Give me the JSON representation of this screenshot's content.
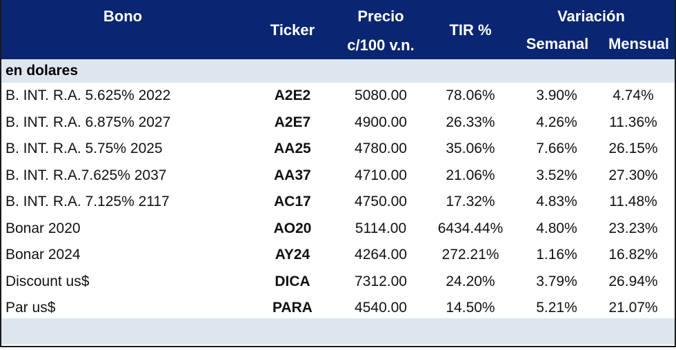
{
  "header": {
    "bono": "Bono",
    "ticker": "Ticker",
    "precio_line1": "Precio",
    "precio_line2": "c/100 v.n.",
    "tir": "TIR %",
    "variacion": "Variación",
    "semanal": "Semanal",
    "mensual": "Mensual"
  },
  "section": {
    "label": "en dolares"
  },
  "rows": [
    {
      "bono": "B. INT. R.A. 5.625% 2022",
      "ticker": "A2E2",
      "precio": "5080.00",
      "tir": "78.06%",
      "semanal": "3.90%",
      "mensual": "4.74%"
    },
    {
      "bono": "B. INT. R.A. 6.875% 2027",
      "ticker": "A2E7",
      "precio": "4900.00",
      "tir": "26.33%",
      "semanal": "4.26%",
      "mensual": "11.36%"
    },
    {
      "bono": "B. INT. R.A. 5.75% 2025",
      "ticker": "AA25",
      "precio": "4780.00",
      "tir": "35.06%",
      "semanal": "7.66%",
      "mensual": "26.15%"
    },
    {
      "bono": "B. INT. R.A.7.625% 2037",
      "ticker": "AA37",
      "precio": "4710.00",
      "tir": "21.06%",
      "semanal": "3.52%",
      "mensual": "27.30%"
    },
    {
      "bono": "B. INT. R.A. 7.125% 2117",
      "ticker": "AC17",
      "precio": "4750.00",
      "tir": "17.32%",
      "semanal": "4.83%",
      "mensual": "11.48%"
    },
    {
      "bono": "Bonar 2020",
      "ticker": "AO20",
      "precio": "5114.00",
      "tir": "6434.44%",
      "semanal": "4.80%",
      "mensual": "23.23%"
    },
    {
      "bono": "Bonar 2024",
      "ticker": "AY24",
      "precio": "4264.00",
      "tir": "272.21%",
      "semanal": "1.16%",
      "mensual": "16.82%"
    },
    {
      "bono": "Discount us$",
      "ticker": "DICA",
      "precio": "7312.00",
      "tir": "24.20%",
      "semanal": "3.79%",
      "mensual": "26.94%"
    },
    {
      "bono": "Par us$",
      "ticker": "PARA",
      "precio": "4540.00",
      "tir": "14.50%",
      "semanal": "5.21%",
      "mensual": "21.07%"
    }
  ],
  "colors": {
    "header_bg": "#0a2672",
    "header_text": "#ffffff",
    "band_bg": "#dde5ef"
  }
}
